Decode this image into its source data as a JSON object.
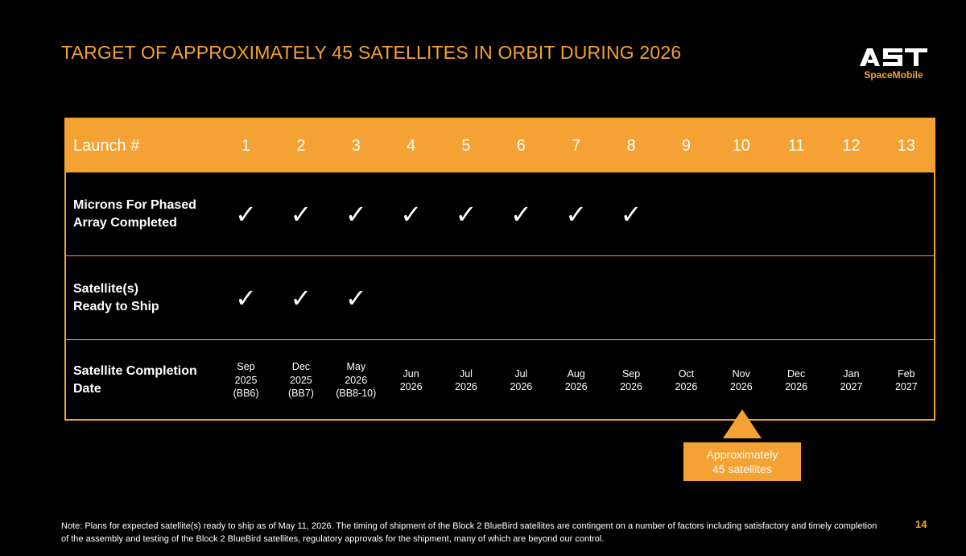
{
  "title": "TARGET OF APPROXIMATELY 45 SATELLITES IN ORBIT DURING 2026",
  "logo": {
    "wordmark": "AST",
    "subtitle": "SpaceMobile"
  },
  "colors": {
    "accent": "#F4A233",
    "background": "#000000",
    "text": "#FFFFFF"
  },
  "table": {
    "header_label": "Launch #",
    "launches": [
      "1",
      "2",
      "3",
      "4",
      "5",
      "6",
      "7",
      "8",
      "9",
      "10",
      "11",
      "12",
      "13"
    ],
    "rows": [
      {
        "label": "Microns For Phased Array Completed",
        "checks": [
          "✓",
          "✓",
          "✓",
          "✓",
          "✓",
          "✓",
          "✓",
          "✓",
          "",
          "",
          "",
          "",
          ""
        ]
      },
      {
        "label": "Satellite(s)\nReady to Ship",
        "checks": [
          "✓",
          "✓",
          "✓",
          "",
          "",
          "",
          "",
          "",
          "",
          "",
          "",
          "",
          ""
        ]
      }
    ],
    "completion_label": "Satellite Completion Date",
    "completion_dates": [
      "Sep\n2025\n(BB6)",
      "Dec\n2025\n(BB7)",
      "May\n2026\n(BB8-10)",
      "Jun\n2026",
      "Jul\n2026",
      "Jul\n2026",
      "Aug\n2026",
      "Sep\n2026",
      "Oct\n2026",
      "Nov\n2026",
      "Dec\n2026",
      "Jan\n2027",
      "Feb\n2027"
    ]
  },
  "callout": "Approximately\n45 satellites",
  "note": "Note: Plans for expected satellite(s) ready to ship as of May 11, 2026. The timing of shipment of the Block 2 BlueBird satellites are contingent on a number of factors including satisfactory and timely completion of the assembly and testing of the Block 2 BlueBird satellites, regulatory approvals for the shipment, many of which are beyond our control.",
  "page_number": "14"
}
